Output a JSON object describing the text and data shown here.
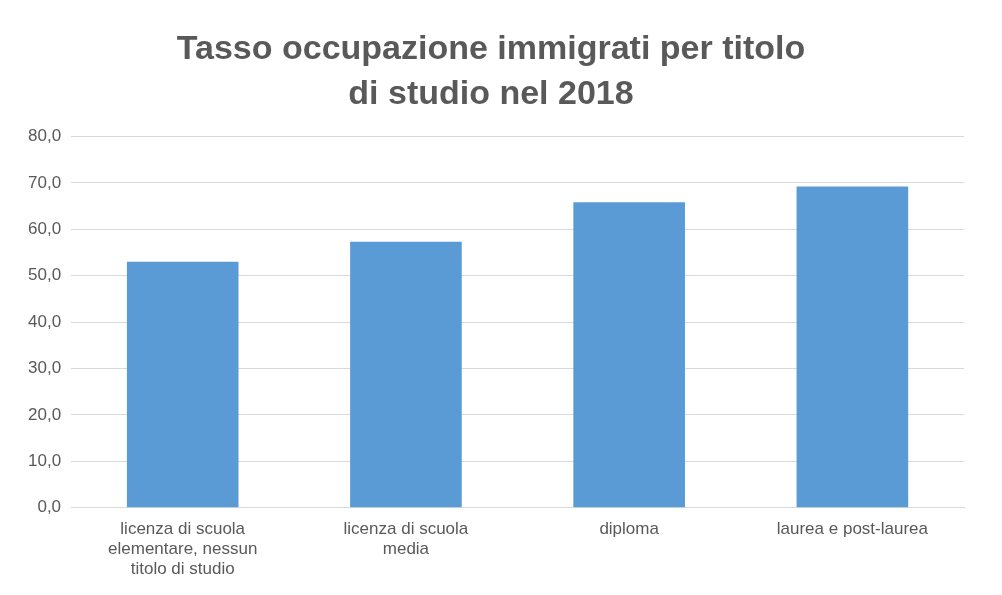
{
  "chart_data": {
    "type": "bar",
    "title": "Tasso occupazione immigrati per titolo di studio nel 2018",
    "categories": [
      "licenza di scuola elementare, nessun titolo di studio",
      "licenza di scuola media",
      "diploma",
      "laurea e post-laurea"
    ],
    "values": [
      53.0,
      57.3,
      65.8,
      69.2
    ],
    "color": "#5b9bd5",
    "ylim": [
      0,
      80
    ],
    "yticks": [
      {
        "value": 0,
        "label": "0,0"
      },
      {
        "value": 10,
        "label": "10,0"
      },
      {
        "value": 20,
        "label": "20,0"
      },
      {
        "value": 30,
        "label": "30,0"
      },
      {
        "value": 40,
        "label": "40,0"
      },
      {
        "value": 50,
        "label": "50,0"
      },
      {
        "value": 60,
        "label": "60,0"
      },
      {
        "value": 70,
        "label": "70,0"
      },
      {
        "value": 80,
        "label": "80,0"
      }
    ],
    "grid": "y"
  }
}
